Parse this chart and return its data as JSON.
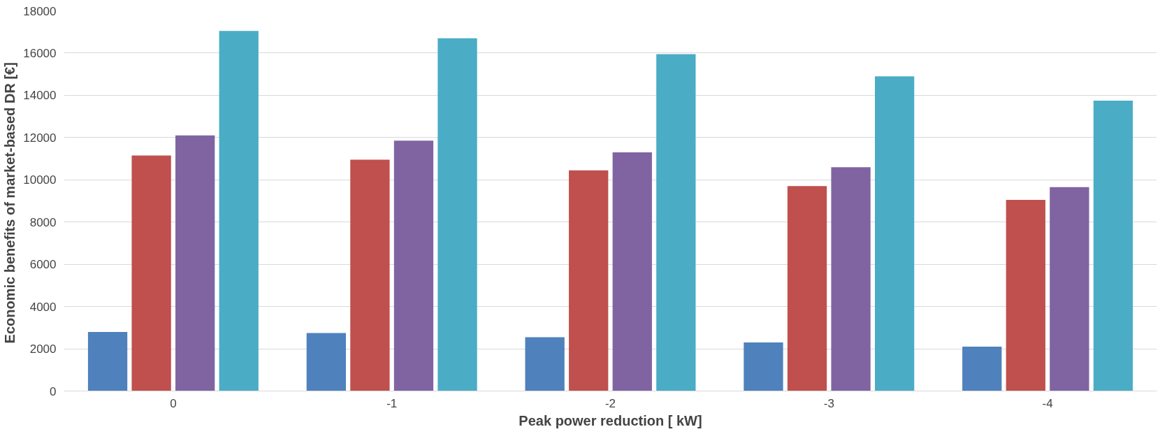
{
  "chart_data": {
    "type": "bar",
    "xlabel": "Peak power reduction [ kW]",
    "ylabel": "Economic benefits of  market-based DR [€]",
    "categories": [
      "0",
      "-1",
      "-2",
      "-3",
      "-4"
    ],
    "series": [
      {
        "color": "#4f81bd",
        "values": [
          2800,
          2750,
          2550,
          2300,
          2100
        ]
      },
      {
        "color": "#c0504d",
        "values": [
          11150,
          10950,
          10450,
          9700,
          9050
        ]
      },
      {
        "color": "#8064a2",
        "values": [
          12100,
          11850,
          11300,
          10600,
          9650
        ]
      },
      {
        "color": "#4bacc6",
        "values": [
          17050,
          16700,
          15950,
          14900,
          13750
        ]
      }
    ],
    "ylim": [
      0,
      18000
    ],
    "yticks": [
      0,
      2000,
      4000,
      6000,
      8000,
      10000,
      12000,
      14000,
      16000,
      18000
    ],
    "grid": "y"
  }
}
